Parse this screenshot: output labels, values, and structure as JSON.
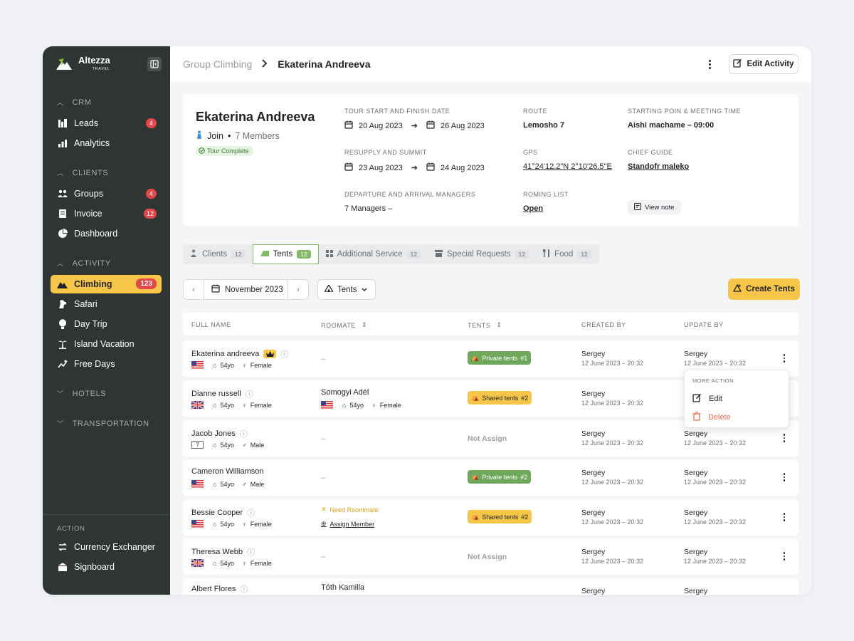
{
  "brand": {
    "name": "Altezza",
    "sub": "TRAVEL"
  },
  "sidebar": {
    "sections": [
      {
        "label": "CRM"
      },
      {
        "label": "CLIENTS"
      },
      {
        "label": "ACTIVITY"
      },
      {
        "label": "HOTELS"
      },
      {
        "label": "TRANSPORTATION"
      }
    ],
    "items": {
      "leads": {
        "label": "Leads",
        "badge": "4"
      },
      "analytics": {
        "label": "Analytics"
      },
      "groups": {
        "label": "Groups",
        "badge": "4"
      },
      "invoice": {
        "label": "Invoice",
        "badge": "12"
      },
      "dashboard": {
        "label": "Dashboard"
      },
      "climbing": {
        "label": "Climbing",
        "badge": "123"
      },
      "safari": {
        "label": "Safari"
      },
      "daytrip": {
        "label": "Day Trip"
      },
      "island": {
        "label": "Island Vacation"
      },
      "freedays": {
        "label": "Free Days"
      }
    },
    "action_label": "ACTION",
    "actions": {
      "currency": {
        "label": "Currency Exchanger"
      },
      "signboard": {
        "label": "Signboard"
      }
    }
  },
  "header": {
    "breadcrumb_parent": "Group Climbing",
    "breadcrumb_current": "Ekaterina Andreeva",
    "edit_label": "Edit Activity"
  },
  "profile": {
    "name": "Ekaterina Andreeva",
    "join": "Join",
    "members": "7 Members",
    "status": "Tour Complete",
    "tour_dates_label": "TOUR START AND FINISH DATE",
    "tour_start": "20 Aug 2023",
    "tour_end": "26 Aug 2023",
    "resupply_label": "RESUPPLY AND SUMMIT",
    "resupply_start": "23 Aug 2023",
    "resupply_end": "24 Aug 2023",
    "managers_label": "DEPARTURE AND ARRIVAL MANAGERS",
    "managers_value": "7 Managers –",
    "route_label": "ROUTE",
    "route_value": "Lemosho 7",
    "gps_label": "GPS",
    "gps_value": "41°24'12.2\"N 2°10'26.5\"E",
    "roming_label": "ROMING LIST",
    "roming_value": "Open",
    "start_label": "STARTING POIN & MEETING TIME",
    "start_value": "Aishi machame – 09:00",
    "guide_label": "CHIEF GUIDE",
    "guide_value": "Standofr maleko",
    "view_note": "View note"
  },
  "tabs": [
    {
      "label": "Clients",
      "count": "12"
    },
    {
      "label": "Tents",
      "count": "12"
    },
    {
      "label": "Additional Service",
      "count": "12"
    },
    {
      "label": "Special Requests",
      "count": "12"
    },
    {
      "label": "Food",
      "count": "12"
    }
  ],
  "toolbar": {
    "month": "November 2023",
    "filter": "Tents",
    "create": "Create Tents"
  },
  "table": {
    "columns": [
      "FULL NAME",
      "ROOMATE",
      "TENTS",
      "CREATED BY",
      "UPDATE BY"
    ],
    "rows": [
      {
        "name": "Ekaterina andreeva",
        "age": "54yo",
        "gender": "Female",
        "roommate": "–",
        "tent": "Private tents",
        "tent_no": "#1",
        "created_by": "Sergey",
        "created_at": "12 June 2023 – 20:32",
        "updated_by": "Sergey",
        "updated_at": "12 June 2023 – 20:32"
      },
      {
        "name": "Dianne russell",
        "age": "54yo",
        "gender": "Female",
        "roommate": "Somogyi Adél",
        "roommate_age": "54yo",
        "roommate_gender": "Female",
        "tent": "Shared tents",
        "tent_no": "#2",
        "created_by": "Sergey",
        "created_at": "12 June 2023 – 20:32"
      },
      {
        "name": "Jacob Jones",
        "age": "54yo",
        "gender": "Male",
        "roommate": "–",
        "tent": "Not Assign",
        "created_by": "Sergey",
        "created_at": "12 June 2023 – 20:32",
        "updated_by": "Sergey",
        "updated_at": "12 June 2023 – 20:32"
      },
      {
        "name": "Cameron Williamson",
        "age": "54yo",
        "gender": "Male",
        "roommate": "–",
        "tent": "Private tents",
        "tent_no": "#2",
        "created_by": "Sergey",
        "created_at": "12 June 2023 – 20:32",
        "updated_by": "Sergey",
        "updated_at": "12 June 2023 – 20:32"
      },
      {
        "name": "Bessie Cooper",
        "age": "54yo",
        "gender": "Female",
        "need_roommate": "Need Roommate",
        "assign_member": "Assign Member",
        "tent": "Shared tents",
        "tent_no": "#2",
        "created_by": "Sergey",
        "created_at": "12 June 2023 – 20:32",
        "updated_by": "Sergey",
        "updated_at": "12 June 2023 – 20:32"
      },
      {
        "name": "Theresa Webb",
        "age": "54yo",
        "gender": "Female",
        "roommate": "–",
        "tent": "Not Assign",
        "created_by": "Sergey",
        "created_at": "12 June 2023 – 20:32",
        "updated_by": "Sergey",
        "updated_at": "12 June 2023 – 20:32"
      },
      {
        "name": "Albert Flores",
        "roommate": "Tóth Kamilla",
        "created_by": "Sergey",
        "updated_by": "Sergey"
      }
    ]
  },
  "more_menu": {
    "label": "MORE ACTION",
    "edit": "Edit",
    "delete": "Delete"
  },
  "colors": {
    "sidebar": "#2e3532",
    "accent": "#f7c548",
    "green": "#6fa85a",
    "badge": "#e2484a",
    "danger": "#e96a4c"
  }
}
